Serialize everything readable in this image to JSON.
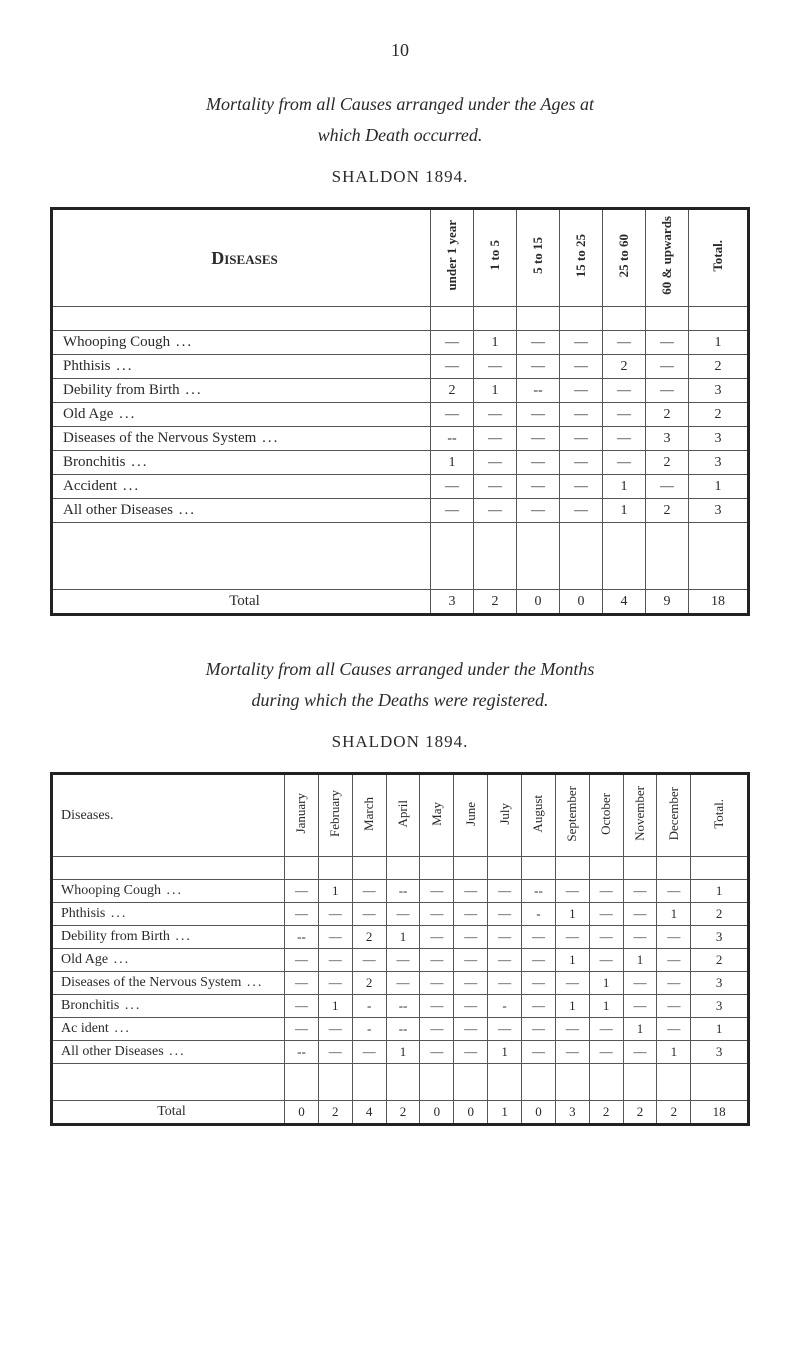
{
  "page_number": "10",
  "heading1_line1": "Mortality from all Causes arranged under the Ages at",
  "heading1_line2": "which Death occurred.",
  "subtitle1": "SHALDON 1894.",
  "heading2_line1": "Mortality from all Causes arranged under the Months",
  "heading2_line2": "during which the Deaths were registered.",
  "subtitle2": "SHALDON 1894.",
  "diseases_label": "Diseases",
  "diseases_label2": "Diseases.",
  "total_label": "Total",
  "total_header": "Total.",
  "table1": {
    "age_headers": [
      "under 1 year",
      "1 to 5",
      "5 to 15",
      "15 to 25",
      "25 to 60",
      "60 & upwards"
    ],
    "rows": [
      {
        "name": "Whooping Cough",
        "vals": [
          "—",
          "1",
          "—",
          "—",
          "—",
          "—"
        ],
        "total": "1"
      },
      {
        "name": "Phthisis",
        "vals": [
          "—",
          "—",
          "—",
          "—",
          "2",
          "—"
        ],
        "total": "2"
      },
      {
        "name": "Debility from Birth",
        "vals": [
          "2",
          "1",
          "--",
          "—",
          "—",
          "—"
        ],
        "total": "3"
      },
      {
        "name": "Old Age",
        "vals": [
          "—",
          "—",
          "—",
          "—",
          "—",
          "2"
        ],
        "total": "2"
      },
      {
        "name": "Diseases of the Nervous System",
        "vals": [
          "--",
          "—",
          "—",
          "—",
          "—",
          "3"
        ],
        "total": "3"
      },
      {
        "name": "Bronchitis",
        "vals": [
          "1",
          "—",
          "—",
          "—",
          "—",
          "2"
        ],
        "total": "3"
      },
      {
        "name": "Accident",
        "vals": [
          "—",
          "—",
          "—",
          "—",
          "1",
          "—"
        ],
        "total": "1"
      },
      {
        "name": "All other Diseases",
        "vals": [
          "—",
          "—",
          "—",
          "—",
          "1",
          "2"
        ],
        "total": "3"
      }
    ],
    "total_row": [
      "3",
      "2",
      "0",
      "0",
      "4",
      "9"
    ],
    "grand_total": "18"
  },
  "table2": {
    "month_headers": [
      "January",
      "February",
      "March",
      "April",
      "May",
      "June",
      "July",
      "August",
      "September",
      "October",
      "November",
      "December"
    ],
    "rows": [
      {
        "name": "Whooping Cough",
        "vals": [
          "—",
          "1",
          "—",
          "--",
          "—",
          "—",
          "—",
          "--",
          "—",
          "—",
          "—",
          "—"
        ],
        "total": "1"
      },
      {
        "name": "Phthisis",
        "vals": [
          "—",
          "—",
          "—",
          "—",
          "—",
          "—",
          "—",
          "-",
          "1",
          "—",
          "—",
          "1"
        ],
        "total": "2"
      },
      {
        "name": "Debility from Birth",
        "vals": [
          "--",
          "—",
          "2",
          "1",
          "—",
          "—",
          "—",
          "—",
          "—",
          "—",
          "—",
          "—"
        ],
        "total": "3"
      },
      {
        "name": "Old Age",
        "vals": [
          "—",
          "—",
          "—",
          "—",
          "—",
          "—",
          "—",
          "—",
          "1",
          "—",
          "1",
          "—"
        ],
        "total": "2"
      },
      {
        "name": "Diseases of the Nervous System",
        "vals": [
          "—",
          "—",
          "2",
          "—",
          "—",
          "—",
          "—",
          "—",
          "—",
          "1",
          "—",
          "—"
        ],
        "total": "3"
      },
      {
        "name": "Bronchitis",
        "vals": [
          "—",
          "1",
          "-",
          "--",
          "—",
          "—",
          "-",
          "—",
          "1",
          "1",
          "—",
          "—"
        ],
        "total": "3"
      },
      {
        "name": "Ac ident",
        "vals": [
          "—",
          "—",
          "-",
          "--",
          "—",
          "—",
          "—",
          "—",
          "—",
          "—",
          "1",
          "—"
        ],
        "total": "1"
      },
      {
        "name": "All other Diseases",
        "vals": [
          "--",
          "—",
          "—",
          "1",
          "—",
          "—",
          "1",
          "—",
          "—",
          "—",
          "—",
          "1"
        ],
        "total": "3"
      }
    ],
    "total_row": [
      "0",
      "2",
      "4",
      "2",
      "0",
      "0",
      "1",
      "0",
      "3",
      "2",
      "2",
      "2"
    ],
    "grand_total": "18"
  },
  "dots3": "...",
  "dots2": ".."
}
